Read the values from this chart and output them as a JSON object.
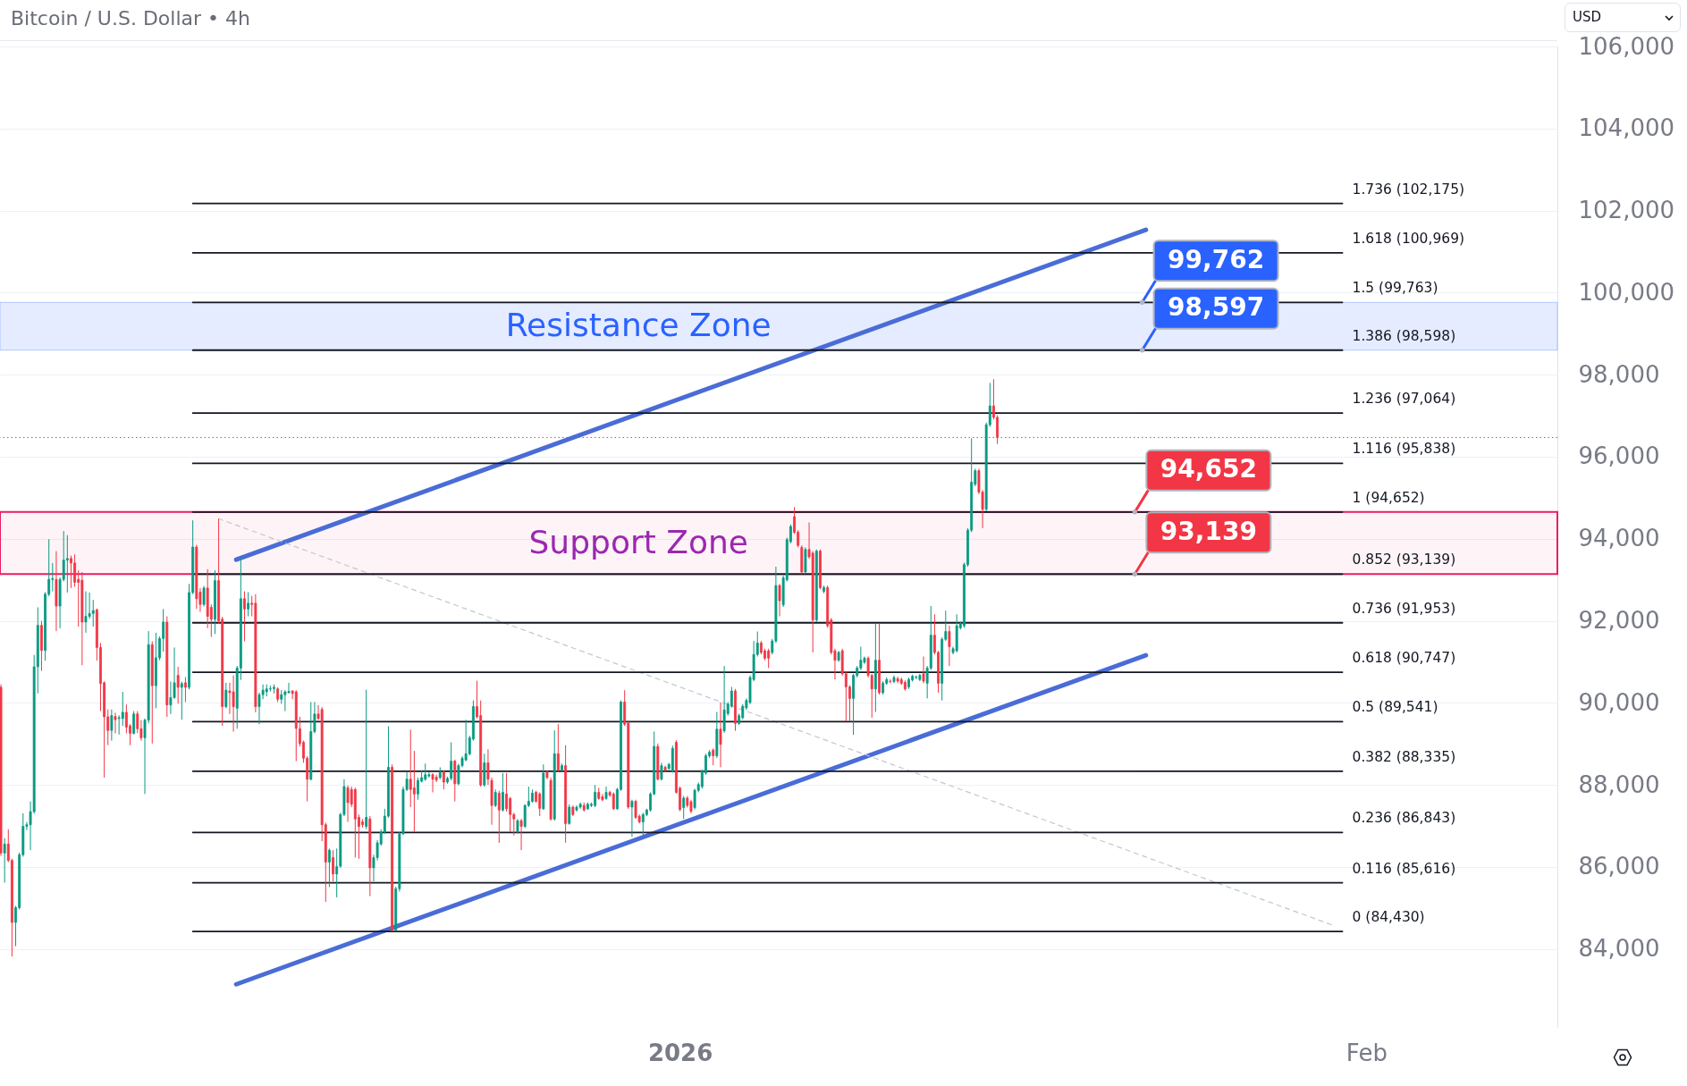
{
  "chart_data": {
    "type": "candlestick",
    "title": "Bitcoin / U.S. Dollar • 4h",
    "ylabel": "USD",
    "xlim": [
      "2025-12-01T07:00",
      "2026-02-09T15:00"
    ],
    "xticks": [
      {
        "value": "2026-01-01",
        "label": "2026"
      },
      {
        "value": "2026-02-01",
        "label": "Feb"
      }
    ],
    "ylim": [
      82100,
      106000
    ],
    "yticks": [
      {
        "value": 84000,
        "label": "84,000"
      },
      {
        "value": 86000,
        "label": "86,000"
      },
      {
        "value": 88000,
        "label": "88,000"
      },
      {
        "value": 90000,
        "label": "90,000"
      },
      {
        "value": 92000,
        "label": "92,000"
      },
      {
        "value": 94000,
        "label": "94,000"
      },
      {
        "value": 96000,
        "label": "96,000"
      },
      {
        "value": 98000,
        "label": "98,000"
      },
      {
        "value": 100000,
        "label": "100,000"
      },
      {
        "value": 102000,
        "label": "102,000"
      },
      {
        "value": 104000,
        "label": "104,000"
      },
      {
        "value": 106000,
        "label": "106,000"
      }
    ],
    "grid": "y",
    "x": [
      "2025-12-01T08:00",
      "2025-12-01T12:00",
      "2025-12-01T16:00",
      "2025-12-01T20:00",
      "2025-12-02T00:00",
      "2025-12-02T04:00",
      "2025-12-02T08:00",
      "2025-12-02T12:00",
      "2025-12-02T16:00",
      "2025-12-02T20:00",
      "2025-12-03T00:00",
      "2025-12-03T04:00",
      "2025-12-03T08:00",
      "2025-12-03T12:00",
      "2025-12-03T16:00",
      "2025-12-03T20:00",
      "2025-12-04T00:00",
      "2025-12-04T04:00",
      "2025-12-04T08:00",
      "2025-12-04T12:00",
      "2025-12-04T16:00",
      "2025-12-04T20:00",
      "2025-12-05T00:00",
      "2025-12-05T04:00",
      "2025-12-05T08:00",
      "2025-12-05T12:00",
      "2025-12-05T16:00",
      "2025-12-05T20:00",
      "2025-12-06T00:00",
      "2025-12-06T04:00",
      "2025-12-06T08:00",
      "2025-12-06T12:00",
      "2025-12-06T16:00",
      "2025-12-06T20:00",
      "2025-12-07T00:00",
      "2025-12-07T04:00",
      "2025-12-07T08:00",
      "2025-12-07T12:00",
      "2025-12-07T16:00",
      "2025-12-07T20:00",
      "2025-12-08T00:00",
      "2025-12-08T04:00",
      "2025-12-08T08:00",
      "2025-12-08T12:00",
      "2025-12-08T16:00",
      "2025-12-08T20:00",
      "2025-12-09T00:00",
      "2025-12-09T04:00",
      "2025-12-09T08:00",
      "2025-12-09T12:00",
      "2025-12-09T16:00",
      "2025-12-09T20:00",
      "2025-12-10T00:00",
      "2025-12-10T04:00",
      "2025-12-10T08:00",
      "2025-12-10T12:00",
      "2025-12-10T16:00",
      "2025-12-10T20:00",
      "2025-12-11T00:00",
      "2025-12-11T04:00",
      "2025-12-11T08:00",
      "2025-12-11T12:00",
      "2025-12-11T16:00",
      "2025-12-11T20:00",
      "2025-12-12T00:00",
      "2025-12-12T04:00",
      "2025-12-12T08:00",
      "2025-12-12T12:00",
      "2025-12-12T16:00",
      "2025-12-12T20:00",
      "2025-12-13T00:00",
      "2025-12-13T04:00",
      "2025-12-13T08:00",
      "2025-12-13T12:00",
      "2025-12-13T16:00",
      "2025-12-13T20:00",
      "2025-12-14T00:00",
      "2025-12-14T04:00",
      "2025-12-14T08:00",
      "2025-12-14T12:00",
      "2025-12-14T16:00",
      "2025-12-14T20:00",
      "2025-12-15T00:00",
      "2025-12-15T04:00",
      "2025-12-15T08:00",
      "2025-12-15T12:00",
      "2025-12-15T16:00",
      "2025-12-15T20:00",
      "2025-12-16T00:00",
      "2025-12-16T04:00",
      "2025-12-16T08:00",
      "2025-12-16T12:00",
      "2025-12-16T16:00",
      "2025-12-16T20:00",
      "2025-12-17T00:00",
      "2025-12-17T04:00",
      "2025-12-17T08:00",
      "2025-12-17T12:00",
      "2025-12-17T16:00",
      "2025-12-17T20:00",
      "2025-12-18T00:00",
      "2025-12-18T04:00",
      "2025-12-18T08:00",
      "2025-12-18T12:00",
      "2025-12-18T16:00",
      "2025-12-18T20:00",
      "2025-12-19T00:00",
      "2025-12-19T04:00",
      "2025-12-19T08:00",
      "2025-12-19T12:00",
      "2025-12-19T16:00",
      "2025-12-19T20:00",
      "2025-12-20T00:00",
      "2025-12-20T04:00",
      "2025-12-20T08:00",
      "2025-12-20T12:00",
      "2025-12-20T16:00",
      "2025-12-20T20:00",
      "2025-12-21T00:00",
      "2025-12-21T04:00",
      "2025-12-21T08:00",
      "2025-12-21T12:00",
      "2025-12-21T16:00",
      "2025-12-21T20:00",
      "2025-12-22T00:00",
      "2025-12-22T04:00",
      "2025-12-22T08:00",
      "2025-12-22T12:00",
      "2025-12-22T16:00",
      "2025-12-22T20:00",
      "2025-12-23T00:00",
      "2025-12-23T04:00",
      "2025-12-23T08:00",
      "2025-12-23T12:00",
      "2025-12-23T16:00",
      "2025-12-23T20:00",
      "2025-12-24T00:00",
      "2025-12-24T04:00",
      "2025-12-24T08:00",
      "2025-12-24T12:00",
      "2025-12-24T16:00",
      "2025-12-24T20:00",
      "2025-12-25T00:00",
      "2025-12-25T04:00",
      "2025-12-25T08:00",
      "2025-12-25T12:00",
      "2025-12-25T16:00",
      "2025-12-25T20:00",
      "2025-12-26T00:00",
      "2025-12-26T04:00",
      "2025-12-26T08:00",
      "2025-12-26T12:00",
      "2025-12-26T16:00",
      "2025-12-26T20:00",
      "2025-12-27T00:00",
      "2025-12-27T04:00",
      "2025-12-27T08:00",
      "2025-12-27T12:00",
      "2025-12-27T16:00",
      "2025-12-27T20:00",
      "2025-12-28T00:00",
      "2025-12-28T04:00",
      "2025-12-28T08:00",
      "2025-12-28T12:00",
      "2025-12-28T16:00",
      "2025-12-28T20:00",
      "2025-12-29T00:00",
      "2025-12-29T04:00",
      "2025-12-29T08:00",
      "2025-12-29T12:00",
      "2025-12-29T16:00",
      "2025-12-29T20:00",
      "2025-12-30T00:00",
      "2025-12-30T04:00",
      "2025-12-30T08:00",
      "2025-12-30T12:00",
      "2025-12-30T16:00",
      "2025-12-30T20:00",
      "2025-12-31T00:00",
      "2025-12-31T04:00",
      "2025-12-31T08:00",
      "2025-12-31T12:00",
      "2025-12-31T16:00",
      "2025-12-31T20:00",
      "2026-01-01T00:00",
      "2026-01-01T04:00",
      "2026-01-01T08:00",
      "2026-01-01T12:00",
      "2026-01-01T16:00",
      "2026-01-01T20:00",
      "2026-01-02T00:00",
      "2026-01-02T04:00",
      "2026-01-02T08:00",
      "2026-01-02T12:00",
      "2026-01-02T16:00",
      "2026-01-02T20:00",
      "2026-01-03T00:00",
      "2026-01-03T04:00",
      "2026-01-03T08:00",
      "2026-01-03T12:00",
      "2026-01-03T16:00",
      "2026-01-03T20:00",
      "2026-01-04T00:00",
      "2026-01-04T04:00",
      "2026-01-04T08:00",
      "2026-01-04T12:00",
      "2026-01-04T16:00",
      "2026-01-04T20:00",
      "2026-01-05T00:00",
      "2026-01-05T04:00",
      "2026-01-05T08:00",
      "2026-01-05T12:00",
      "2026-01-05T16:00",
      "2026-01-05T20:00",
      "2026-01-06T00:00",
      "2026-01-06T04:00",
      "2026-01-06T08:00",
      "2026-01-06T12:00",
      "2026-01-06T16:00",
      "2026-01-06T20:00",
      "2026-01-07T00:00",
      "2026-01-07T04:00",
      "2026-01-07T08:00",
      "2026-01-07T12:00",
      "2026-01-07T16:00",
      "2026-01-07T20:00",
      "2026-01-08T00:00",
      "2026-01-08T04:00",
      "2026-01-08T08:00",
      "2026-01-08T12:00",
      "2026-01-08T16:00",
      "2026-01-08T20:00",
      "2026-01-09T00:00",
      "2026-01-09T04:00",
      "2026-01-09T08:00",
      "2026-01-09T12:00",
      "2026-01-09T16:00",
      "2026-01-09T20:00",
      "2026-01-10T00:00",
      "2026-01-10T04:00",
      "2026-01-10T08:00",
      "2026-01-10T12:00",
      "2026-01-10T16:00",
      "2026-01-10T20:00",
      "2026-01-11T00:00",
      "2026-01-11T04:00",
      "2026-01-11T08:00",
      "2026-01-11T12:00",
      "2026-01-11T16:00",
      "2026-01-11T20:00",
      "2026-01-12T00:00",
      "2026-01-12T04:00",
      "2026-01-12T08:00",
      "2026-01-12T12:00",
      "2026-01-12T16:00",
      "2026-01-12T20:00",
      "2026-01-13T00:00",
      "2026-01-13T04:00",
      "2026-01-13T08:00",
      "2026-01-13T12:00",
      "2026-01-13T16:00",
      "2026-01-13T20:00",
      "2026-01-14T00:00",
      "2026-01-14T04:00",
      "2026-01-14T08:00",
      "2026-01-14T12:00",
      "2026-01-14T16:00",
      "2026-01-14T20:00",
      "2026-01-15T00:00",
      "2026-01-15T04:00",
      "2026-01-15T08:00"
    ],
    "ohlc": [
      [
        90380,
        90450,
        86270,
        86340
      ],
      [
        86340,
        86700,
        85620,
        86560
      ],
      [
        86560,
        86920,
        86120,
        86160
      ],
      [
        86160,
        86200,
        83820,
        84650
      ],
      [
        84650,
        85050,
        84070,
        85010
      ],
      [
        85010,
        86350,
        84960,
        86300
      ],
      [
        86300,
        87310,
        86250,
        86990
      ],
      [
        86990,
        87100,
        86900,
        87030
      ],
      [
        87030,
        87600,
        86410,
        87350
      ],
      [
        87350,
        91170,
        87300,
        90880
      ],
      [
        90880,
        92330,
        90230,
        91890
      ],
      [
        91890,
        92000,
        90780,
        91280
      ],
      [
        91280,
        92700,
        91030,
        92650
      ],
      [
        92650,
        93990,
        92600,
        93010
      ],
      [
        93010,
        93410,
        92720,
        93030
      ],
      [
        93010,
        93700,
        91750,
        92360
      ],
      [
        92360,
        93060,
        91820,
        93010
      ],
      [
        93010,
        94190,
        92960,
        93480
      ],
      [
        93480,
        94090,
        92690,
        93520
      ],
      [
        93520,
        93590,
        92800,
        93410
      ],
      [
        93410,
        93620,
        92830,
        92940
      ],
      [
        93010,
        93230,
        91860,
        92940
      ],
      [
        92990,
        93190,
        90920,
        91970
      ],
      [
        91970,
        92720,
        91710,
        92110
      ],
      [
        92110,
        92690,
        92050,
        92180
      ],
      [
        92180,
        92510,
        91860,
        92250
      ],
      [
        92270,
        92300,
        91030,
        91350
      ],
      [
        91350,
        91460,
        89800,
        90470
      ],
      [
        90490,
        90530,
        88180,
        89660
      ],
      [
        89660,
        89840,
        88970,
        89330
      ],
      [
        89330,
        89840,
        89080,
        89690
      ],
      [
        89670,
        89760,
        89260,
        89590
      ],
      [
        89620,
        89700,
        89230,
        89640
      ],
      [
        89620,
        90270,
        89440,
        89770
      ],
      [
        89770,
        89960,
        89260,
        89410
      ],
      [
        89440,
        89480,
        88970,
        89260
      ],
      [
        89260,
        89800,
        89230,
        89730
      ],
      [
        89730,
        89800,
        89260,
        89370
      ],
      [
        89370,
        89580,
        89080,
        89150
      ],
      [
        89150,
        89620,
        87780,
        89580
      ],
      [
        89580,
        91750,
        89500,
        91420
      ],
      [
        91420,
        91500,
        89010,
        90420
      ],
      [
        90420,
        91710,
        89870,
        91100
      ],
      [
        91100,
        91620,
        91040,
        91570
      ],
      [
        91570,
        92290,
        91250,
        91970
      ],
      [
        91970,
        92110,
        89660,
        89950
      ],
      [
        89950,
        90520,
        89730,
        90130
      ],
      [
        90130,
        91350,
        90100,
        90490
      ],
      [
        90670,
        90880,
        89980,
        90380
      ],
      [
        90380,
        90520,
        89590,
        90470
      ],
      [
        90490,
        90630,
        90020,
        90380
      ],
      [
        90380,
        92900,
        90330,
        92690
      ],
      [
        92690,
        94450,
        92650,
        93800
      ],
      [
        93800,
        93850,
        92290,
        92540
      ],
      [
        92700,
        92800,
        92220,
        92400
      ],
      [
        92400,
        92850,
        92350,
        92800
      ],
      [
        92800,
        93260,
        91820,
        92110
      ],
      [
        92330,
        92400,
        91610,
        92040
      ],
      [
        92040,
        93230,
        91680,
        92980
      ],
      [
        92980,
        94490,
        91930,
        92000
      ],
      [
        92040,
        92100,
        89440,
        89910
      ],
      [
        89910,
        90490,
        89870,
        90310
      ],
      [
        90290,
        90490,
        89730,
        90250
      ],
      [
        90270,
        90670,
        89300,
        89910
      ],
      [
        89870,
        90900,
        89370,
        90850
      ],
      [
        90850,
        93550,
        90560,
        92540
      ],
      [
        92540,
        92720,
        91500,
        92290
      ],
      [
        92290,
        92700,
        92110,
        92430
      ],
      [
        92430,
        92610,
        92110,
        92400
      ],
      [
        92430,
        92650,
        89770,
        89910
      ],
      [
        89910,
        90250,
        89480,
        90200
      ],
      [
        90200,
        90450,
        90090,
        90310
      ],
      [
        90270,
        90450,
        90160,
        90340
      ],
      [
        90340,
        90420,
        90280,
        90350
      ],
      [
        90350,
        90450,
        90230,
        90380
      ],
      [
        90340,
        90380,
        90020,
        90090
      ],
      [
        90090,
        90310,
        89980,
        90200
      ],
      [
        90200,
        90310,
        89800,
        90270
      ],
      [
        90250,
        90490,
        90230,
        90280
      ],
      [
        90290,
        90310,
        90090,
        90230
      ],
      [
        90270,
        90310,
        88580,
        89380
      ],
      [
        89370,
        89660,
        88940,
        89010
      ],
      [
        89040,
        89080,
        88540,
        88650
      ],
      [
        88650,
        88700,
        87600,
        88140
      ],
      [
        88140,
        90020,
        88110,
        89300
      ],
      [
        89300,
        90020,
        89260,
        89730
      ],
      [
        89730,
        89950,
        89580,
        89620
      ],
      [
        89840,
        89900,
        86630,
        87030
      ],
      [
        87030,
        87080,
        85150,
        86120
      ],
      [
        86120,
        86450,
        85510,
        86410
      ],
      [
        86230,
        86410,
        85650,
        85830
      ],
      [
        85830,
        86450,
        85260,
        86010
      ],
      [
        86020,
        87320,
        85980,
        87280
      ],
      [
        87280,
        88140,
        87240,
        87960
      ],
      [
        87930,
        87990,
        87100,
        87570
      ],
      [
        87890,
        87960,
        87460,
        87530
      ],
      [
        87890,
        87930,
        86230,
        87170
      ],
      [
        87210,
        87280,
        86200,
        86990
      ],
      [
        87100,
        87170,
        86960,
        87030
      ],
      [
        86990,
        90320,
        86920,
        87210
      ],
      [
        87170,
        87240,
        85290,
        85980
      ],
      [
        85980,
        86300,
        85650,
        86230
      ],
      [
        86230,
        86660,
        86160,
        86590
      ],
      [
        86560,
        86920,
        86520,
        86850
      ],
      [
        86850,
        87420,
        86810,
        87240
      ],
      [
        87240,
        89430,
        87200,
        88430
      ],
      [
        88430,
        88500,
        84430,
        84460
      ],
      [
        84460,
        85520,
        84430,
        85470
      ],
      [
        85470,
        86850,
        85400,
        86810
      ],
      [
        86810,
        87960,
        86780,
        87890
      ],
      [
        87890,
        88320,
        87850,
        88140
      ],
      [
        88140,
        89350,
        87460,
        87890
      ],
      [
        87930,
        88830,
        86850,
        87780
      ],
      [
        87780,
        88180,
        87640,
        88110
      ],
      [
        88090,
        88360,
        88060,
        88180
      ],
      [
        88140,
        88520,
        88100,
        88250
      ],
      [
        88220,
        88320,
        88180,
        88250
      ],
      [
        88250,
        88290,
        87820,
        88140
      ],
      [
        88190,
        88250,
        88070,
        88120
      ],
      [
        88180,
        88430,
        88140,
        88300
      ],
      [
        88320,
        88360,
        87890,
        88070
      ],
      [
        88070,
        88200,
        88030,
        88160
      ],
      [
        88160,
        89040,
        88110,
        88580
      ],
      [
        88580,
        88620,
        87600,
        88030
      ],
      [
        88030,
        88520,
        87990,
        88470
      ],
      [
        88470,
        88700,
        88430,
        88650
      ],
      [
        88610,
        89590,
        88580,
        88760
      ],
      [
        88760,
        89200,
        88720,
        89150
      ],
      [
        89120,
        90060,
        89080,
        89910
      ],
      [
        89910,
        90540,
        89620,
        89660
      ],
      [
        89690,
        90060,
        87960,
        88000
      ],
      [
        88000,
        88760,
        87960,
        88540
      ],
      [
        88540,
        88870,
        88000,
        88140
      ],
      [
        88110,
        88180,
        87030,
        87500
      ],
      [
        87500,
        87890,
        87460,
        87820
      ],
      [
        87800,
        87860,
        86590,
        87390
      ],
      [
        87390,
        88290,
        87350,
        87820
      ],
      [
        87780,
        88290,
        87350,
        87420
      ],
      [
        87670,
        87710,
        86850,
        87280
      ],
      [
        87280,
        87320,
        86770,
        87170
      ],
      [
        86850,
        87170,
        86810,
        87130
      ],
      [
        87130,
        87170,
        86410,
        86990
      ],
      [
        86990,
        87530,
        86950,
        87500
      ],
      [
        87500,
        87960,
        87460,
        87600
      ],
      [
        87600,
        87890,
        87570,
        87800
      ],
      [
        87820,
        87860,
        87570,
        87600
      ],
      [
        87780,
        87820,
        87240,
        87430
      ],
      [
        87420,
        88500,
        87390,
        88290
      ],
      [
        88320,
        88360,
        88140,
        88180
      ],
      [
        88110,
        88180,
        87130,
        87170
      ],
      [
        87170,
        89330,
        87130,
        88760
      ],
      [
        88760,
        89480,
        88320,
        88360
      ],
      [
        88360,
        88520,
        88320,
        88470
      ],
      [
        88470,
        88970,
        86590,
        87060
      ],
      [
        87060,
        87530,
        87030,
        87460
      ],
      [
        87460,
        87500,
        87240,
        87280
      ],
      [
        87390,
        87500,
        87350,
        87460
      ],
      [
        87460,
        87570,
        87420,
        87530
      ],
      [
        87500,
        87570,
        87350,
        87390
      ],
      [
        87420,
        87570,
        87390,
        87530
      ],
      [
        87500,
        87570,
        87460,
        87530
      ],
      [
        87500,
        88000,
        87460,
        87820
      ],
      [
        87820,
        87930,
        87640,
        87670
      ],
      [
        87710,
        87780,
        87600,
        87640
      ],
      [
        87670,
        87960,
        87640,
        87820
      ],
      [
        87820,
        87860,
        87710,
        87750
      ],
      [
        87780,
        87820,
        87390,
        87420
      ],
      [
        87420,
        87930,
        87390,
        87890
      ],
      [
        87890,
        90060,
        87860,
        90020
      ],
      [
        90020,
        90310,
        89440,
        89480
      ],
      [
        89510,
        89550,
        87420,
        87460
      ],
      [
        87460,
        87640,
        86740,
        87600
      ],
      [
        87600,
        87640,
        87170,
        87210
      ],
      [
        87240,
        87280,
        87060,
        87100
      ],
      [
        87100,
        87320,
        86770,
        87280
      ],
      [
        87280,
        87420,
        87240,
        87390
      ],
      [
        87390,
        87820,
        87350,
        87780
      ],
      [
        87780,
        89300,
        87750,
        88940
      ],
      [
        88940,
        89010,
        88110,
        88140
      ],
      [
        88140,
        88540,
        88110,
        88470
      ],
      [
        88430,
        88470,
        88320,
        88360
      ],
      [
        88400,
        88540,
        88360,
        88500
      ],
      [
        88340,
        88960,
        88300,
        88890
      ],
      [
        89040,
        89090,
        87790,
        87820
      ],
      [
        87920,
        87960,
        87360,
        87400
      ],
      [
        87450,
        87730,
        87170,
        87680
      ],
      [
        87680,
        87730,
        87450,
        87500
      ],
      [
        87590,
        87640,
        87310,
        87360
      ],
      [
        87450,
        87910,
        87400,
        87870
      ],
      [
        87870,
        88060,
        87820,
        88010
      ],
      [
        87960,
        88380,
        87910,
        88340
      ],
      [
        88290,
        88760,
        88250,
        88710
      ],
      [
        88710,
        88850,
        88660,
        88800
      ],
      [
        88850,
        88890,
        88480,
        88710
      ],
      [
        88710,
        89780,
        88660,
        89360
      ],
      [
        89360,
        90010,
        88430,
        88990
      ],
      [
        89320,
        90900,
        89270,
        89830
      ],
      [
        89740,
        90020,
        89690,
        89970
      ],
      [
        89920,
        90390,
        89880,
        90290
      ],
      [
        90290,
        90340,
        89320,
        89500
      ],
      [
        89500,
        89740,
        89460,
        89690
      ],
      [
        89640,
        89970,
        89600,
        89920
      ],
      [
        89880,
        90110,
        89830,
        90060
      ],
      [
        90010,
        90670,
        89970,
        90620
      ],
      [
        90570,
        91510,
        90530,
        91180
      ],
      [
        91180,
        91740,
        91130,
        91460
      ],
      [
        91460,
        91510,
        91180,
        91230
      ],
      [
        91270,
        91320,
        91040,
        91090
      ],
      [
        91270,
        91320,
        90850,
        91090
      ],
      [
        91230,
        91560,
        91180,
        91510
      ],
      [
        91510,
        93320,
        91460,
        92860
      ],
      [
        92860,
        92900,
        92110,
        92490
      ],
      [
        92390,
        93100,
        92340,
        93050
      ],
      [
        93000,
        94030,
        92960,
        93980
      ],
      [
        93930,
        94350,
        93890,
        94300
      ],
      [
        94540,
        94770,
        94120,
        94160
      ],
      [
        94160,
        94210,
        93790,
        93840
      ],
      [
        93790,
        93840,
        93140,
        93190
      ],
      [
        93190,
        93790,
        93140,
        93740
      ],
      [
        93740,
        94400,
        93510,
        93560
      ],
      [
        93650,
        93700,
        91230,
        92020
      ],
      [
        92020,
        93740,
        91970,
        93700
      ],
      [
        93700,
        93740,
        92770,
        92810
      ],
      [
        92720,
        92860,
        92670,
        92810
      ],
      [
        92810,
        92860,
        91830,
        91880
      ],
      [
        92020,
        92070,
        91180,
        91230
      ],
      [
        91270,
        91320,
        90570,
        91040
      ],
      [
        91040,
        91270,
        91000,
        91230
      ],
      [
        91270,
        91320,
        90660,
        90710
      ],
      [
        90710,
        90760,
        89550,
        90390
      ],
      [
        90390,
        90430,
        89550,
        90110
      ],
      [
        90110,
        90710,
        89220,
        90670
      ],
      [
        90670,
        90900,
        90620,
        90850
      ],
      [
        90850,
        91370,
        90800,
        91040
      ],
      [
        90990,
        91130,
        90950,
        91090
      ],
      [
        91090,
        91130,
        90620,
        90670
      ],
      [
        90670,
        90710,
        89640,
        90340
      ],
      [
        90340,
        91930,
        89780,
        91040
      ],
      [
        91040,
        91930,
        90200,
        90250
      ],
      [
        90250,
        90530,
        90200,
        90480
      ],
      [
        90480,
        90620,
        90440,
        90570
      ],
      [
        90530,
        90580,
        90480,
        90520
      ],
      [
        90520,
        90670,
        90480,
        90620
      ],
      [
        90590,
        90640,
        90480,
        90530
      ],
      [
        90570,
        90620,
        90440,
        90480
      ],
      [
        90500,
        90550,
        90300,
        90340
      ],
      [
        90390,
        90620,
        90340,
        90570
      ],
      [
        90560,
        90690,
        90520,
        90650
      ],
      [
        90620,
        90670,
        90580,
        90630
      ],
      [
        90570,
        90710,
        90530,
        90670
      ],
      [
        90710,
        91130,
        90480,
        90530
      ],
      [
        90480,
        90900,
        90110,
        90850
      ],
      [
        90850,
        92360,
        90800,
        91650
      ],
      [
        91650,
        92160,
        91180,
        91230
      ],
      [
        91230,
        91270,
        90250,
        90480
      ],
      [
        90480,
        91600,
        90060,
        91550
      ],
      [
        91550,
        92250,
        91510,
        91740
      ],
      [
        91740,
        91880,
        90900,
        91370
      ],
      [
        91230,
        91370,
        91180,
        91320
      ],
      [
        91270,
        92160,
        91230,
        91880
      ],
      [
        91830,
        91980,
        91790,
        91930
      ],
      [
        91880,
        93420,
        91830,
        93370
      ],
      [
        93370,
        94260,
        93320,
        94210
      ],
      [
        94210,
        96450,
        94160,
        95380
      ],
      [
        95330,
        95710,
        95280,
        95660
      ],
      [
        95660,
        95710,
        95090,
        95140
      ],
      [
        95140,
        95190,
        94260,
        94720
      ],
      [
        94720,
        96830,
        94670,
        96780
      ],
      [
        96780,
        97800,
        96730,
        97240
      ],
      [
        97240,
        97890,
        96910,
        96960
      ],
      [
        96960,
        97010,
        96310,
        96470
      ]
    ],
    "series": [
      {
        "type": "line",
        "color": "#4a6cd6",
        "x": [
          "2025-12-11T23:00",
          "2026-01-22T01:00"
        ],
        "values": [
          93490,
          101530
        ]
      },
      {
        "type": "line",
        "color": "#4a6cd6",
        "x": [
          "2025-12-11T23:00",
          "2026-01-22T01:00"
        ],
        "values": [
          83140,
          91160
        ]
      },
      {
        "type": "line",
        "color": "#c3c6ce",
        "line_style": "dashed",
        "x": [
          "2025-12-11T04:00",
          "2026-01-30T13:00"
        ],
        "values": [
          94490,
          84570
        ]
      },
      {
        "type": "line",
        "name": "1.736 (102,175)",
        "color": "#131722",
        "x": [
          "2025-12-10T00:00",
          "2026-01-30T22:00"
        ],
        "values": [
          102175,
          102175
        ]
      },
      {
        "type": "line",
        "name": "1.618 (100,969)",
        "color": "#131722",
        "x": [
          "2025-12-10T00:00",
          "2026-01-30T22:00"
        ],
        "values": [
          100969,
          100969
        ]
      },
      {
        "type": "line",
        "name": "1.5 (99,763)",
        "color": "#131722",
        "x": [
          "2025-12-10T00:00",
          "2026-01-30T22:00"
        ],
        "values": [
          99763,
          99763
        ]
      },
      {
        "type": "line",
        "name": "1.386 (98,598)",
        "color": "#131722",
        "x": [
          "2025-12-10T00:00",
          "2026-01-30T22:00"
        ],
        "values": [
          98598,
          98598
        ]
      },
      {
        "type": "line",
        "name": "1.236 (97,064)",
        "color": "#131722",
        "x": [
          "2025-12-10T00:00",
          "2026-01-30T22:00"
        ],
        "values": [
          97064,
          97064
        ]
      },
      {
        "type": "line",
        "name": "1.116 (95,838)",
        "color": "#131722",
        "x": [
          "2025-12-10T00:00",
          "2026-01-30T22:00"
        ],
        "values": [
          95838,
          95838
        ]
      },
      {
        "type": "line",
        "name": "1 (94,652)",
        "color": "#131722",
        "x": [
          "2025-12-10T00:00",
          "2026-01-30T22:00"
        ],
        "values": [
          94652,
          94652
        ]
      },
      {
        "type": "line",
        "name": "0.852 (93,139)",
        "color": "#131722",
        "x": [
          "2025-12-10T00:00",
          "2026-01-30T22:00"
        ],
        "values": [
          93139,
          93139
        ]
      },
      {
        "type": "line",
        "name": "0.736 (91,953)",
        "color": "#131722",
        "x": [
          "2025-12-10T00:00",
          "2026-01-30T22:00"
        ],
        "values": [
          91953,
          91953
        ]
      },
      {
        "type": "line",
        "name": "0.618 (90,747)",
        "color": "#131722",
        "x": [
          "2025-12-10T00:00",
          "2026-01-30T22:00"
        ],
        "values": [
          90747,
          90747
        ]
      },
      {
        "type": "line",
        "name": "0.5 (89,541)",
        "color": "#131722",
        "x": [
          "2025-12-10T00:00",
          "2026-01-30T22:00"
        ],
        "values": [
          89541,
          89541
        ]
      },
      {
        "type": "line",
        "name": "0.382 (88,335)",
        "color": "#131722",
        "x": [
          "2025-12-10T00:00",
          "2026-01-30T22:00"
        ],
        "values": [
          88335,
          88335
        ]
      },
      {
        "type": "line",
        "name": "0.236 (86,843)",
        "color": "#131722",
        "x": [
          "2025-12-10T00:00",
          "2026-01-30T22:00"
        ],
        "values": [
          86843,
          86843
        ]
      },
      {
        "type": "line",
        "name": "0.116 (85,616)",
        "color": "#131722",
        "x": [
          "2025-12-10T00:00",
          "2026-01-30T22:00"
        ],
        "values": [
          85616,
          85616
        ]
      },
      {
        "type": "line",
        "name": "0 (84,430)",
        "color": "#131722",
        "x": [
          "2025-12-10T00:00",
          "2026-01-30T22:00"
        ],
        "values": [
          84430,
          84430
        ]
      }
    ],
    "bands": [
      {
        "axis": "y",
        "from": 98598,
        "to": 99763,
        "label": "Resistance Zone",
        "color": "#2962ff"
      },
      {
        "axis": "y",
        "from": 93139,
        "to": 94652,
        "label": "Support Zone",
        "color": "#e91e63"
      }
    ],
    "ref_lines": [
      {
        "axis": "y",
        "value": 96470,
        "color": "#f23645",
        "line_style": "dotted"
      }
    ],
    "annotations": [
      {
        "text": "99,762",
        "x": "2026-01-21T21:00",
        "y": 99762
      },
      {
        "text": "98,597",
        "x": "2026-01-21T21:00",
        "y": 98597
      },
      {
        "text": "94,652",
        "x": "2026-01-21T13:00",
        "y": 94652
      },
      {
        "text": "93,139",
        "x": "2026-01-21T13:00",
        "y": 93139
      }
    ]
  }
}
